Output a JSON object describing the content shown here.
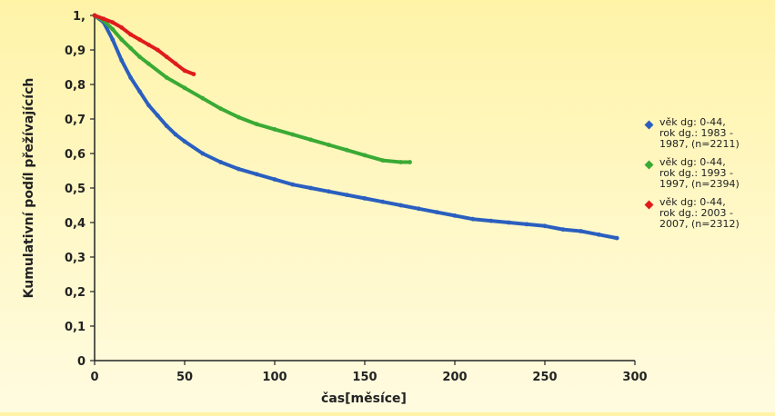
{
  "chart_data": {
    "type": "line",
    "xlabel": "čas[měsíce]",
    "ylabel": "Kumulativní podíl přežívajících",
    "xlim": [
      0,
      300
    ],
    "ylim": [
      0,
      1
    ],
    "x_ticks": [
      "0",
      "50",
      "100",
      "150",
      "200",
      "250",
      "300"
    ],
    "y_ticks": [
      "0",
      "0,1",
      "0,2",
      "0,3",
      "0,4",
      "0,5",
      "0,6",
      "0,7",
      "0,8",
      "0,9",
      "1,"
    ],
    "legend_position": "right",
    "grid": false,
    "series": [
      {
        "name": "věk dg: 0-44, rok dg.: 1983 - 1987, (n=2211)",
        "legend_lines": [
          "věk dg: 0-44,",
          "rok dg.: 1983 -",
          "1987, (n=2211)"
        ],
        "color": "#2a5fbf",
        "points": [
          [
            0,
            1.0
          ],
          [
            5,
            0.98
          ],
          [
            10,
            0.93
          ],
          [
            15,
            0.87
          ],
          [
            20,
            0.82
          ],
          [
            25,
            0.78
          ],
          [
            30,
            0.74
          ],
          [
            35,
            0.71
          ],
          [
            40,
            0.68
          ],
          [
            45,
            0.655
          ],
          [
            50,
            0.635
          ],
          [
            60,
            0.6
          ],
          [
            70,
            0.575
          ],
          [
            80,
            0.555
          ],
          [
            90,
            0.54
          ],
          [
            100,
            0.525
          ],
          [
            110,
            0.51
          ],
          [
            120,
            0.5
          ],
          [
            130,
            0.49
          ],
          [
            140,
            0.48
          ],
          [
            150,
            0.47
          ],
          [
            160,
            0.46
          ],
          [
            170,
            0.45
          ],
          [
            180,
            0.44
          ],
          [
            190,
            0.43
          ],
          [
            200,
            0.42
          ],
          [
            210,
            0.41
          ],
          [
            220,
            0.405
          ],
          [
            230,
            0.4
          ],
          [
            240,
            0.395
          ],
          [
            250,
            0.39
          ],
          [
            260,
            0.38
          ],
          [
            270,
            0.375
          ],
          [
            280,
            0.365
          ],
          [
            290,
            0.355
          ]
        ]
      },
      {
        "name": "věk dg: 0-44, rok dg.: 1993 - 1997, (n=2394)",
        "legend_lines": [
          "věk dg: 0-44,",
          "rok dg.: 1993 -",
          "1997, (n=2394)"
        ],
        "color": "#3aaa35",
        "points": [
          [
            0,
            1.0
          ],
          [
            5,
            0.985
          ],
          [
            10,
            0.96
          ],
          [
            15,
            0.93
          ],
          [
            20,
            0.905
          ],
          [
            25,
            0.88
          ],
          [
            30,
            0.86
          ],
          [
            40,
            0.82
          ],
          [
            50,
            0.79
          ],
          [
            60,
            0.76
          ],
          [
            70,
            0.73
          ],
          [
            80,
            0.705
          ],
          [
            90,
            0.685
          ],
          [
            100,
            0.67
          ],
          [
            110,
            0.655
          ],
          [
            120,
            0.64
          ],
          [
            130,
            0.625
          ],
          [
            140,
            0.61
          ],
          [
            150,
            0.595
          ],
          [
            160,
            0.58
          ],
          [
            170,
            0.575
          ],
          [
            175,
            0.575
          ]
        ]
      },
      {
        "name": "věk dg: 0-44, rok dg.: 2003 - 2007, (n=2312)",
        "legend_lines": [
          "věk dg: 0-44,",
          "rok dg.: 2003 -",
          "2007, (n=2312)"
        ],
        "color": "#e01b1b",
        "points": [
          [
            0,
            1.0
          ],
          [
            5,
            0.99
          ],
          [
            10,
            0.98
          ],
          [
            15,
            0.965
          ],
          [
            20,
            0.945
          ],
          [
            25,
            0.93
          ],
          [
            30,
            0.915
          ],
          [
            35,
            0.9
          ],
          [
            40,
            0.88
          ],
          [
            45,
            0.86
          ],
          [
            50,
            0.84
          ],
          [
            55,
            0.83
          ]
        ]
      }
    ]
  }
}
